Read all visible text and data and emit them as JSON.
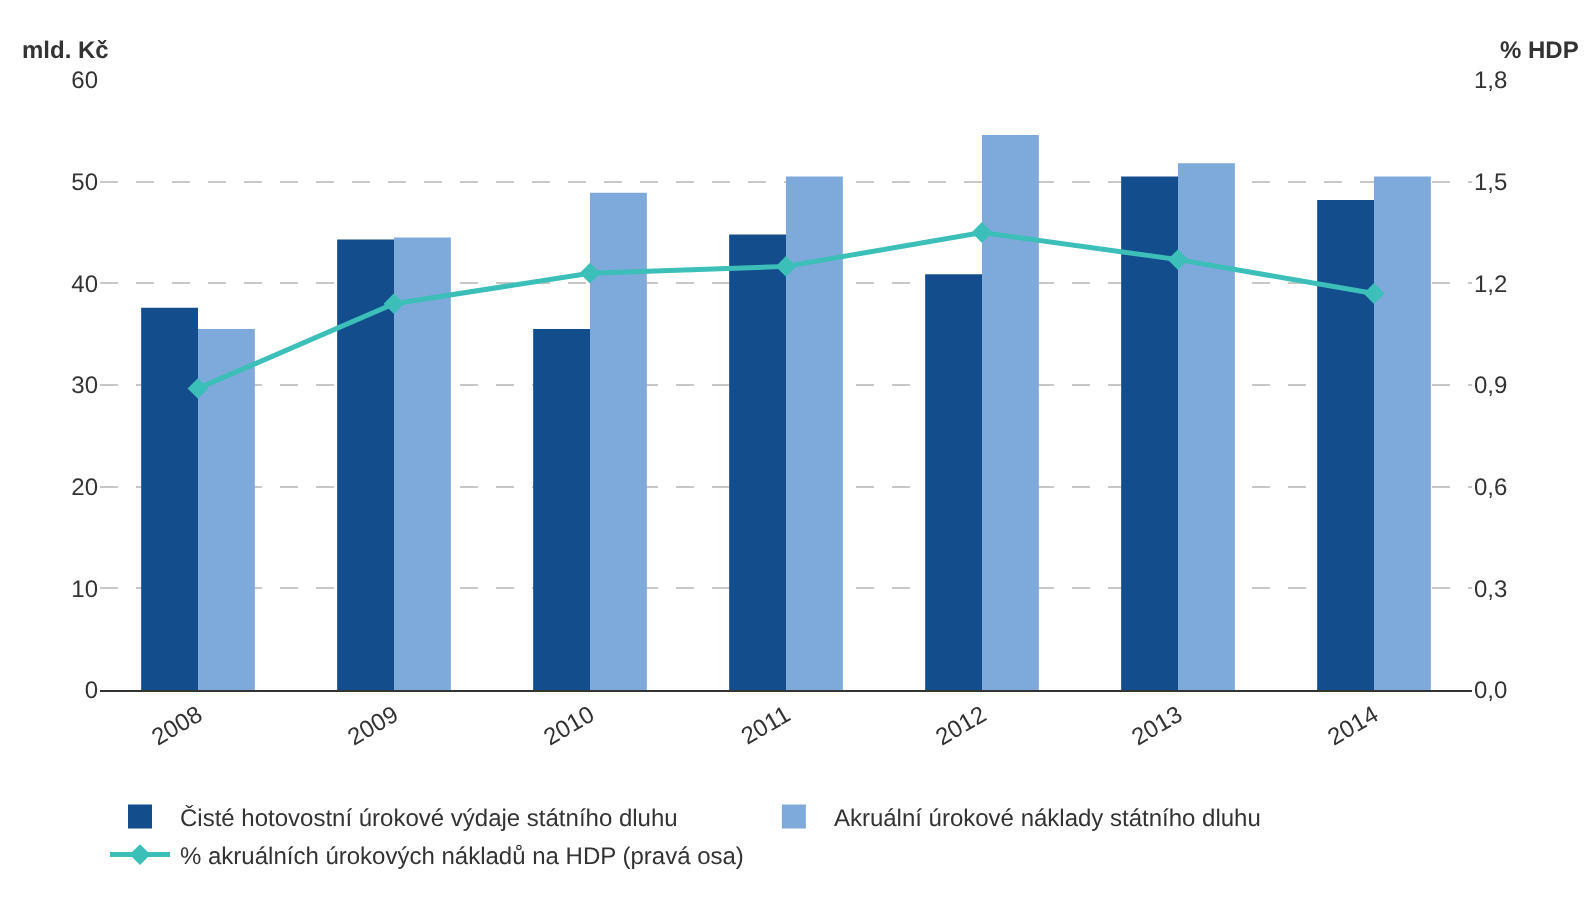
{
  "chart_data": {
    "type": "bar",
    "ylabel": "mld. Kč",
    "y2label": "% HDP",
    "categories": [
      "2008",
      "2009",
      "2010",
      "2011",
      "2012",
      "2013",
      "2014"
    ],
    "series": [
      {
        "name": "Čisté hotovostní úrokové výdaje státního dluhu",
        "color": "#134d8c",
        "values": [
          37.6,
          44.3,
          35.5,
          44.8,
          40.9,
          50.5,
          48.2
        ]
      },
      {
        "name": "Akruální úrokové náklady státního dluhu",
        "color": "#7eaadb",
        "values": [
          35.5,
          44.5,
          48.9,
          50.5,
          54.6,
          51.8,
          50.5
        ]
      },
      {
        "name": "% akruálních úrokových nákladů na HDP (pravá osa)",
        "type": "line",
        "axis": "y2",
        "color": "#3cbfb8",
        "marker": "diamond",
        "values": [
          0.89,
          1.14,
          1.23,
          1.25,
          1.35,
          1.27,
          1.17
        ]
      }
    ],
    "ylim": [
      0,
      60
    ],
    "yticks": [
      0,
      10,
      20,
      30,
      40,
      50,
      60
    ],
    "y2lim": [
      0,
      1.8
    ],
    "y2ticks": [
      {
        "value": 0,
        "label": "0,0"
      },
      {
        "value": 0.3,
        "label": "0,3"
      },
      {
        "value": 0.6,
        "label": "0,6"
      },
      {
        "value": 0.9,
        "label": "0,9"
      },
      {
        "value": 1.2,
        "label": "1,2"
      },
      {
        "value": 1.5,
        "label": "1,5"
      },
      {
        "value": 1.8,
        "label": "1,8"
      }
    ],
    "grid": "y",
    "legend": "bottom"
  }
}
